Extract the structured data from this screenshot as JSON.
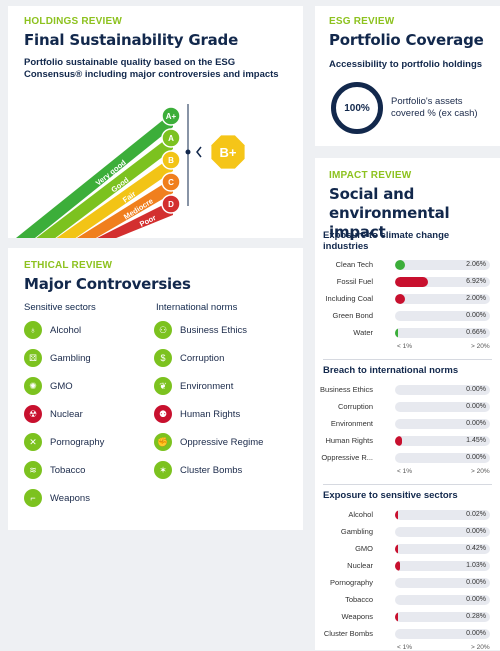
{
  "holdings": {
    "kicker": "HOLDINGS REVIEW",
    "title": "Final Sustainability Grade",
    "subtitle_l1": "Portfolio sustainable quality based on the ESG",
    "subtitle_l2": "Consensus® including major controversies and impacts",
    "grade_steps": [
      {
        "badge": "A+",
        "label": "Very good",
        "color": "#3cae3a"
      },
      {
        "badge": "A",
        "label": "Good",
        "color": "#7cc21f"
      },
      {
        "badge": "B",
        "label": "Fair",
        "color": "#f2c416"
      },
      {
        "badge": "C",
        "label": "Mediocre",
        "color": "#f07f1e"
      },
      {
        "badge": "D",
        "label": "Poor",
        "color": "#d32f2f"
      }
    ],
    "grade": "B+",
    "grade_color": "#f5c518"
  },
  "esg": {
    "kicker": "ESG REVIEW",
    "title": "Portfolio Coverage",
    "subtitle": "Accessibility to portfolio holdings",
    "percent": "100%",
    "desc_l1": "Portfolio's assets",
    "desc_l2": "covered % (ex cash)"
  },
  "ethical": {
    "kicker": "ETHICAL REVIEW",
    "title": "Major Controversies",
    "col1_title": "Sensitive sectors",
    "col2_title": "International norms",
    "sectors": [
      {
        "label": "Alcohol",
        "icon": "glass-icon",
        "glyph": "♁",
        "color": "#7cc21f"
      },
      {
        "label": "Gambling",
        "icon": "dice-icon",
        "glyph": "⚄",
        "color": "#7cc21f"
      },
      {
        "label": "GMO",
        "icon": "dna-icon",
        "glyph": "✺",
        "color": "#7cc21f"
      },
      {
        "label": "Nuclear",
        "icon": "radiation-icon",
        "glyph": "☢",
        "color": "#c8102e"
      },
      {
        "label": "Pornography",
        "icon": "cross-icon",
        "glyph": "✕",
        "color": "#7cc21f"
      },
      {
        "label": "Tobacco",
        "icon": "cigarette-icon",
        "glyph": "≋",
        "color": "#7cc21f"
      },
      {
        "label": "Weapons",
        "icon": "gun-icon",
        "glyph": "⌐",
        "color": "#7cc21f"
      }
    ],
    "norms": [
      {
        "label": "Business Ethics",
        "icon": "people-icon",
        "glyph": "⚇",
        "color": "#7cc21f"
      },
      {
        "label": "Corruption",
        "icon": "money-icon",
        "glyph": "$",
        "color": "#7cc21f"
      },
      {
        "label": "Environment",
        "icon": "leaf-icon",
        "glyph": "❦",
        "color": "#7cc21f"
      },
      {
        "label": "Human Rights",
        "icon": "family-icon",
        "glyph": "⚉",
        "color": "#c8102e"
      },
      {
        "label": "Oppressive Regime",
        "icon": "fist-icon",
        "glyph": "✊",
        "color": "#7cc21f"
      },
      {
        "label": "Cluster Bombs",
        "icon": "bomb-icon",
        "glyph": "✶",
        "color": "#7cc21f"
      }
    ]
  },
  "impact": {
    "kicker": "IMPACT REVIEW",
    "title_l1": "Social and environmental",
    "title_l2": "impact",
    "axis_left": "< 1%",
    "axis_right": "> 20%",
    "sections": [
      {
        "title_l1": "Exposure to climate change",
        "title_l2": "industries",
        "rows": [
          {
            "label": "Clean Tech",
            "value": "2.06%",
            "pct": 0.103,
            "color": "#3cae3a"
          },
          {
            "label": "Fossil Fuel",
            "value": "6.92%",
            "pct": 0.35,
            "color": "#c8102e"
          },
          {
            "label": "Including Coal",
            "value": "2.00%",
            "pct": 0.1,
            "color": "#c8102e"
          },
          {
            "label": "Green Bond",
            "value": "0.00%",
            "pct": 0,
            "color": "#3cae3a"
          },
          {
            "label": "Water",
            "value": "0.66%",
            "pct": 0.035,
            "color": "#3cae3a"
          }
        ]
      },
      {
        "title_l1": "Breach to international norms",
        "title_l2": "",
        "rows": [
          {
            "label": "Business Ethics",
            "value": "0.00%",
            "pct": 0,
            "color": "#c8102e"
          },
          {
            "label": "Corruption",
            "value": "0.00%",
            "pct": 0,
            "color": "#c8102e"
          },
          {
            "label": "Environment",
            "value": "0.00%",
            "pct": 0,
            "color": "#c8102e"
          },
          {
            "label": "Human Rights",
            "value": "1.45%",
            "pct": 0.075,
            "color": "#c8102e"
          },
          {
            "label": "Oppressive R...",
            "value": "0.00%",
            "pct": 0,
            "color": "#c8102e"
          }
        ]
      },
      {
        "title_l1": "Exposure to sensitive sectors",
        "title_l2": "",
        "rows": [
          {
            "label": "Alcohol",
            "value": "0.02%",
            "pct": 0.002,
            "color": "#c8102e"
          },
          {
            "label": "Gambling",
            "value": "0.00%",
            "pct": 0,
            "color": "#c8102e"
          },
          {
            "label": "GMO",
            "value": "0.42%",
            "pct": 0.022,
            "color": "#c8102e"
          },
          {
            "label": "Nuclear",
            "value": "1.03%",
            "pct": 0.052,
            "color": "#c8102e"
          },
          {
            "label": "Pornography",
            "value": "0.00%",
            "pct": 0,
            "color": "#c8102e"
          },
          {
            "label": "Tobacco",
            "value": "0.00%",
            "pct": 0,
            "color": "#c8102e"
          },
          {
            "label": "Weapons",
            "value": "0.28%",
            "pct": 0.015,
            "color": "#c8102e"
          },
          {
            "label": "Cluster Bombs",
            "value": "0.00%",
            "pct": 0,
            "color": "#c8102e"
          }
        ]
      }
    ]
  }
}
